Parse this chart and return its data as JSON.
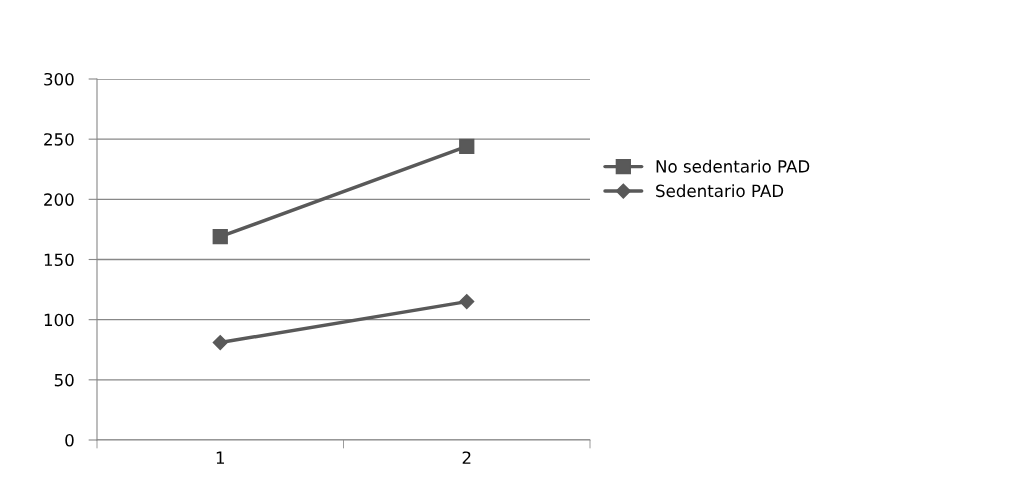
{
  "chart_data": {
    "type": "line",
    "categories": [
      "1",
      "2"
    ],
    "series": [
      {
        "name": "No sedentario PAD",
        "color": "#595959",
        "marker": "square",
        "values": [
          169,
          244
        ]
      },
      {
        "name": "Sedentario PAD",
        "color": "#595959",
        "marker": "diamond",
        "values": [
          81,
          115
        ]
      }
    ],
    "ylim": [
      0,
      300
    ],
    "yticks": [
      0,
      50,
      100,
      150,
      200,
      250,
      300
    ],
    "grid": "y",
    "legend": "right",
    "line_style": "solid"
  }
}
